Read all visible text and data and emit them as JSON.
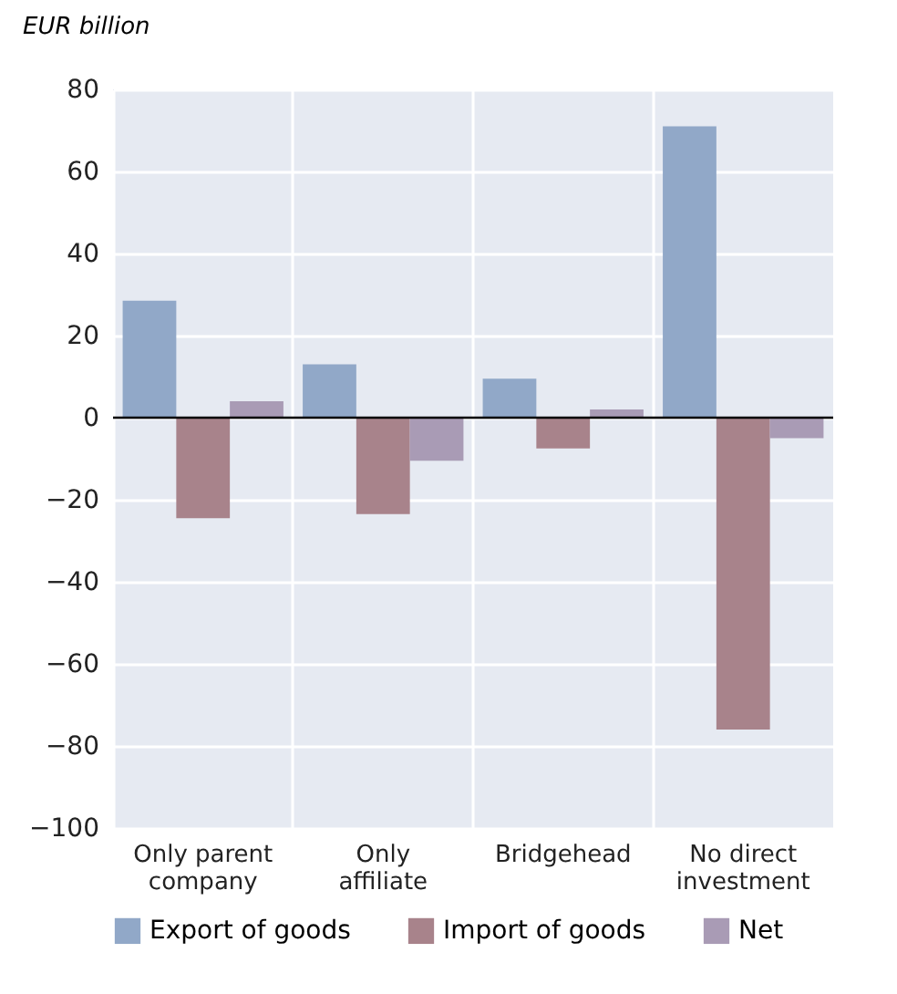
{
  "chart_data": {
    "type": "bar",
    "ylabel": "EUR billion",
    "categories": [
      "Only parent company",
      "Only affiliate",
      "Bridgehead",
      "No direct investment"
    ],
    "series": [
      {
        "name": "Export of goods",
        "color": "#91a8c8",
        "values": [
          28.5,
          13,
          9.5,
          71
        ]
      },
      {
        "name": "Import of goods",
        "color": "#a8838b",
        "values": [
          -24.5,
          -23.5,
          -7.5,
          -76
        ]
      },
      {
        "name": "Net",
        "color": "#a99bb5",
        "values": [
          4,
          -10.5,
          2,
          -5
        ]
      }
    ],
    "ylim": [
      -100,
      80
    ],
    "yticks": [
      -100,
      -80,
      -60,
      -40,
      -20,
      0,
      20,
      40,
      60,
      80
    ],
    "grid": true,
    "legend": "bottom",
    "ref_lines": [
      {
        "axis": "y",
        "value": 0,
        "color": "#000000"
      }
    ]
  }
}
